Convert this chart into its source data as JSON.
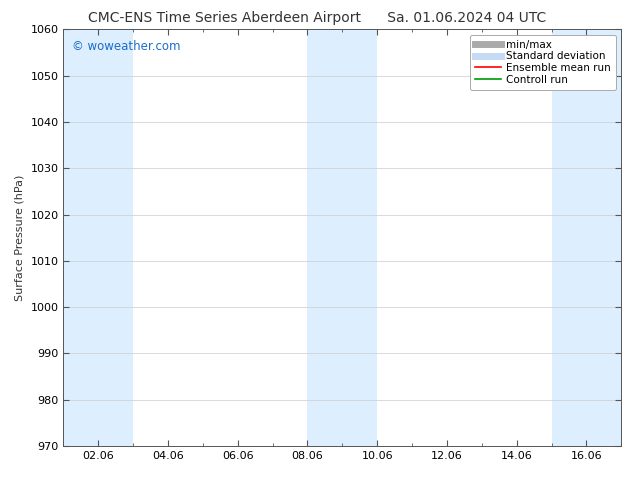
{
  "title_left": "CMC-ENS Time Series Aberdeen Airport",
  "title_right": "Sa. 01.06.2024 04 UTC",
  "ylabel": "Surface Pressure (hPa)",
  "ylim": [
    970,
    1060
  ],
  "yticks": [
    970,
    980,
    990,
    1000,
    1010,
    1020,
    1030,
    1040,
    1050,
    1060
  ],
  "xlim": [
    0,
    16
  ],
  "xtick_labels": [
    "02.06",
    "04.06",
    "06.06",
    "08.06",
    "10.06",
    "12.06",
    "14.06",
    "16.06"
  ],
  "xtick_positions": [
    1,
    3,
    5,
    7,
    9,
    11,
    13,
    15
  ],
  "watermark": "© woweather.com",
  "watermark_color": "#1a6dcc",
  "bg_color": "#ffffff",
  "plot_bg_color": "#ffffff",
  "shaded_bands": [
    {
      "x_start": 0,
      "x_end": 2,
      "color": "#ddeeff"
    },
    {
      "x_start": 7,
      "x_end": 9,
      "color": "#ddeeff"
    },
    {
      "x_start": 14,
      "x_end": 16,
      "color": "#ddeeff"
    }
  ],
  "legend_items": [
    {
      "label": "min/max",
      "color": "#aaaaaa",
      "lw": 5,
      "style": "solid"
    },
    {
      "label": "Standard deviation",
      "color": "#c5daf5",
      "lw": 5,
      "style": "solid"
    },
    {
      "label": "Ensemble mean run",
      "color": "#ff0000",
      "lw": 1.2,
      "style": "solid"
    },
    {
      "label": "Controll run",
      "color": "#009900",
      "lw": 1.2,
      "style": "solid"
    }
  ],
  "title_fontsize": 10,
  "title_color": "#333333",
  "axis_label_fontsize": 8,
  "tick_fontsize": 8,
  "legend_fontsize": 7.5,
  "minor_xticks": [
    0,
    1,
    2,
    3,
    4,
    5,
    6,
    7,
    8,
    9,
    10,
    11,
    12,
    13,
    14,
    15,
    16
  ]
}
